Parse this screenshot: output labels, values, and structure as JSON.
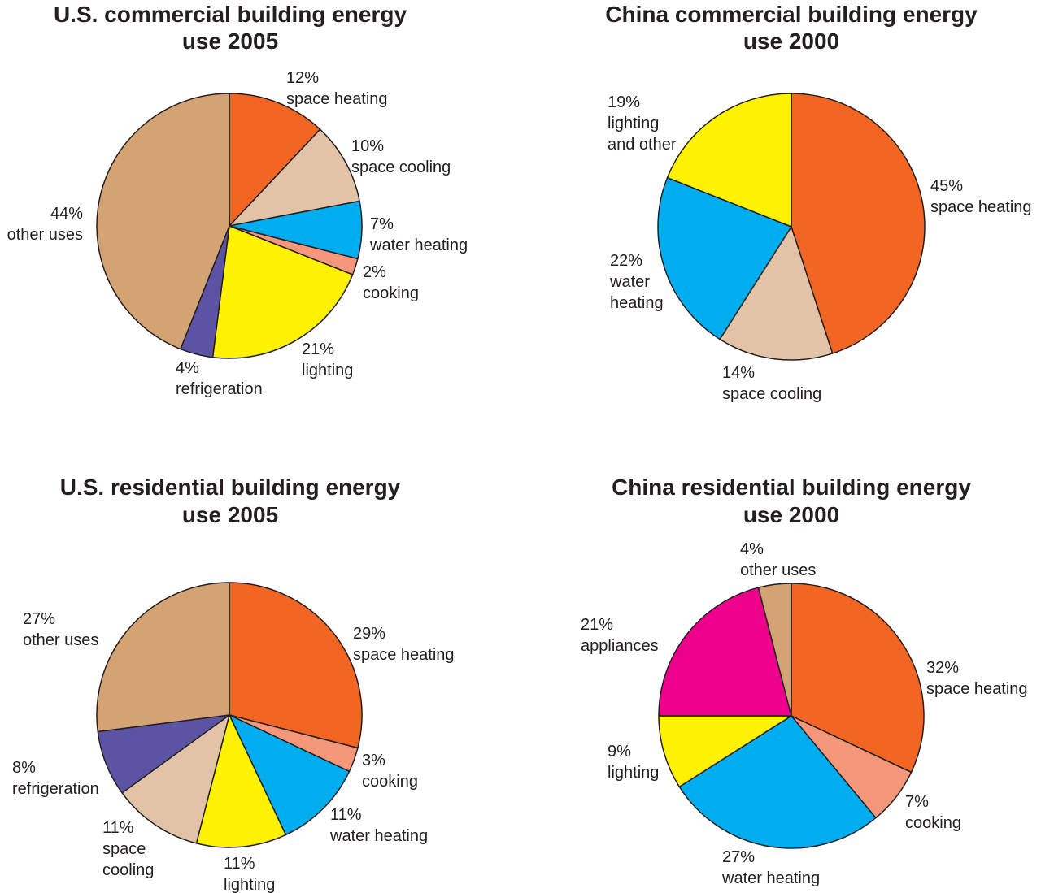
{
  "chart_data": [
    {
      "type": "pie",
      "title_line1": "U.S. commercial building energy",
      "title_line2": "use 2005",
      "slices": [
        {
          "pct": 12,
          "value_label": "12%",
          "label": [
            "space heating"
          ],
          "color": "#f26522"
        },
        {
          "pct": 10,
          "value_label": "10%",
          "label": [
            "space cooling"
          ],
          "color": "#e2c3a7"
        },
        {
          "pct": 7,
          "value_label": "7%",
          "label": [
            "water heating"
          ],
          "color": "#00aeef"
        },
        {
          "pct": 2,
          "value_label": "2%",
          "label": [
            "cooking"
          ],
          "color": "#f4977a"
        },
        {
          "pct": 21,
          "value_label": "21%",
          "label": [
            "lighting"
          ],
          "color": "#fff200"
        },
        {
          "pct": 4,
          "value_label": "4%",
          "label": [
            "refrigeration"
          ],
          "color": "#5b53a3"
        },
        {
          "pct": 44,
          "value_label": "44%",
          "label": [
            "other uses"
          ],
          "color": "#d4a373"
        }
      ]
    },
    {
      "type": "pie",
      "title_line1": "China commercial building energy",
      "title_line2": "use 2000",
      "slices": [
        {
          "pct": 45,
          "value_label": "45%",
          "label": [
            "space heating"
          ],
          "color": "#f26522"
        },
        {
          "pct": 14,
          "value_label": "14%",
          "label": [
            "space cooling"
          ],
          "color": "#e2c3a7"
        },
        {
          "pct": 22,
          "value_label": "22%",
          "label": [
            "water",
            "heating"
          ],
          "color": "#00aeef"
        },
        {
          "pct": 19,
          "value_label": "19%",
          "label": [
            "lighting",
            "and other"
          ],
          "color": "#fff200"
        }
      ]
    },
    {
      "type": "pie",
      "title_line1": "U.S. residential building energy",
      "title_line2": "use 2005",
      "slices": [
        {
          "pct": 29,
          "value_label": "29%",
          "label": [
            "space heating"
          ],
          "color": "#f26522"
        },
        {
          "pct": 3,
          "value_label": "3%",
          "label": [
            "cooking"
          ],
          "color": "#f4977a"
        },
        {
          "pct": 11,
          "value_label": "11%",
          "label": [
            "water heating"
          ],
          "color": "#00aeef"
        },
        {
          "pct": 11,
          "value_label": "11%",
          "label": [
            "lighting"
          ],
          "color": "#fff200"
        },
        {
          "pct": 11,
          "value_label": "11%",
          "label": [
            "space",
            "cooling"
          ],
          "color": "#e2c3a7"
        },
        {
          "pct": 8,
          "value_label": "8%",
          "label": [
            "refrigeration"
          ],
          "color": "#5b53a3"
        },
        {
          "pct": 27,
          "value_label": "27%",
          "label": [
            "other uses"
          ],
          "color": "#d4a373"
        }
      ]
    },
    {
      "type": "pie",
      "title_line1": "China residential building energy",
      "title_line2": "use 2000",
      "slices": [
        {
          "pct": 32,
          "value_label": "32%",
          "label": [
            "space heating"
          ],
          "color": "#f26522"
        },
        {
          "pct": 7,
          "value_label": "7%",
          "label": [
            "cooking"
          ],
          "color": "#f4977a"
        },
        {
          "pct": 27,
          "value_label": "27%",
          "label": [
            "water heating"
          ],
          "color": "#00aeef"
        },
        {
          "pct": 9,
          "value_label": "9%",
          "label": [
            "lighting"
          ],
          "color": "#fff200"
        },
        {
          "pct": 21,
          "value_label": "21%",
          "label": [
            "appliances"
          ],
          "color": "#ec008c"
        },
        {
          "pct": 4,
          "value_label": "4%",
          "label": [
            "other uses"
          ],
          "color": "#d4a373"
        }
      ]
    }
  ]
}
